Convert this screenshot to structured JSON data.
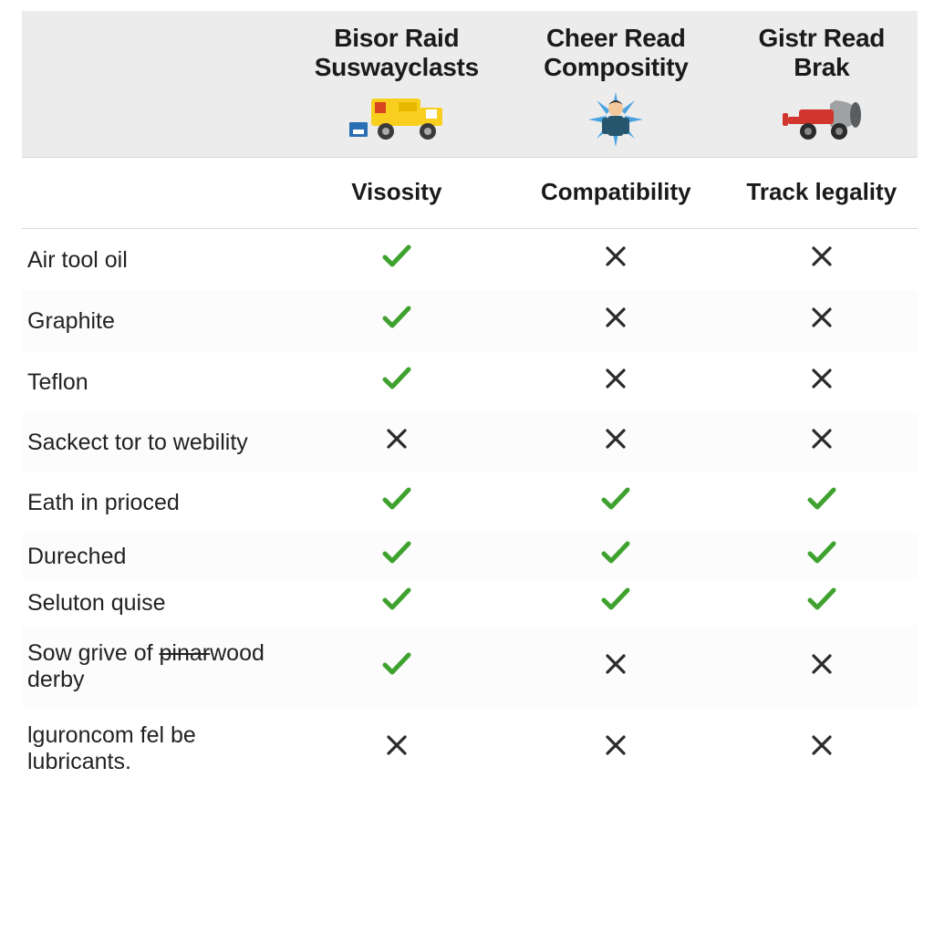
{
  "colors": {
    "header_bg": "#ececec",
    "border": "#d9d9d9",
    "text": "#1a1a1a",
    "check": "#3fa22f",
    "cross": "#2b2b2b",
    "truck_body": "#f8cf1e",
    "truck_wheel": "#3b3b3b",
    "truck_window": "#ffffff",
    "crate": "#2a6fb5",
    "burst": "#4aa3e0",
    "person_hair": "#2b2b2b",
    "person_skin": "#f4c89b",
    "person_suit": "#27576e",
    "mixer_red": "#d1352d",
    "mixer_grey": "#9ea2a5",
    "mixer_dark": "#5a5d60",
    "mixer_wheel": "#2b2b2b"
  },
  "fonts": {
    "brand_size": 28,
    "subhead_size": 26,
    "row_size": 25
  },
  "headers": [
    {
      "line1": "Bisor Raid",
      "line2": "Suswayclasts",
      "icon": "truck"
    },
    {
      "line1": "Cheer Read",
      "line2": "Compositity",
      "icon": "burst-person"
    },
    {
      "line1": "Gistr Read",
      "line2": "Brak",
      "icon": "mixer"
    }
  ],
  "subheaders": [
    "Visosity",
    "Compatibility",
    "Track legality"
  ],
  "rows": [
    {
      "label": "Air tool oil",
      "cells": [
        "check",
        "cross",
        "cross"
      ],
      "shade": false
    },
    {
      "label": "Graphite",
      "cells": [
        "check",
        "cross",
        "cross"
      ],
      "shade": true
    },
    {
      "label": "Teflon",
      "cells": [
        "check",
        "cross",
        "cross"
      ],
      "shade": false
    },
    {
      "label": "Sackect tor to webility",
      "cells": [
        "cross",
        "cross",
        "cross"
      ],
      "shade": true
    },
    {
      "label": "Eath in prioced",
      "cells": [
        "check",
        "check",
        "check"
      ],
      "shade": false
    },
    {
      "label": "Dureched",
      "cells": [
        "check",
        "check",
        "check"
      ],
      "shade": true,
      "tight": true
    },
    {
      "label": "Seluton quise",
      "cells": [
        "check",
        "check",
        "check"
      ],
      "shade": false,
      "tight": true
    },
    {
      "label": "Sow grive of pinarwood derby",
      "strike_word": "pinar",
      "cells": [
        "check",
        "cross",
        "cross"
      ],
      "shade": true
    },
    {
      "label": "lguroncom fel be lubricants.",
      "cells": [
        "cross",
        "cross",
        "cross"
      ],
      "shade": false
    }
  ]
}
